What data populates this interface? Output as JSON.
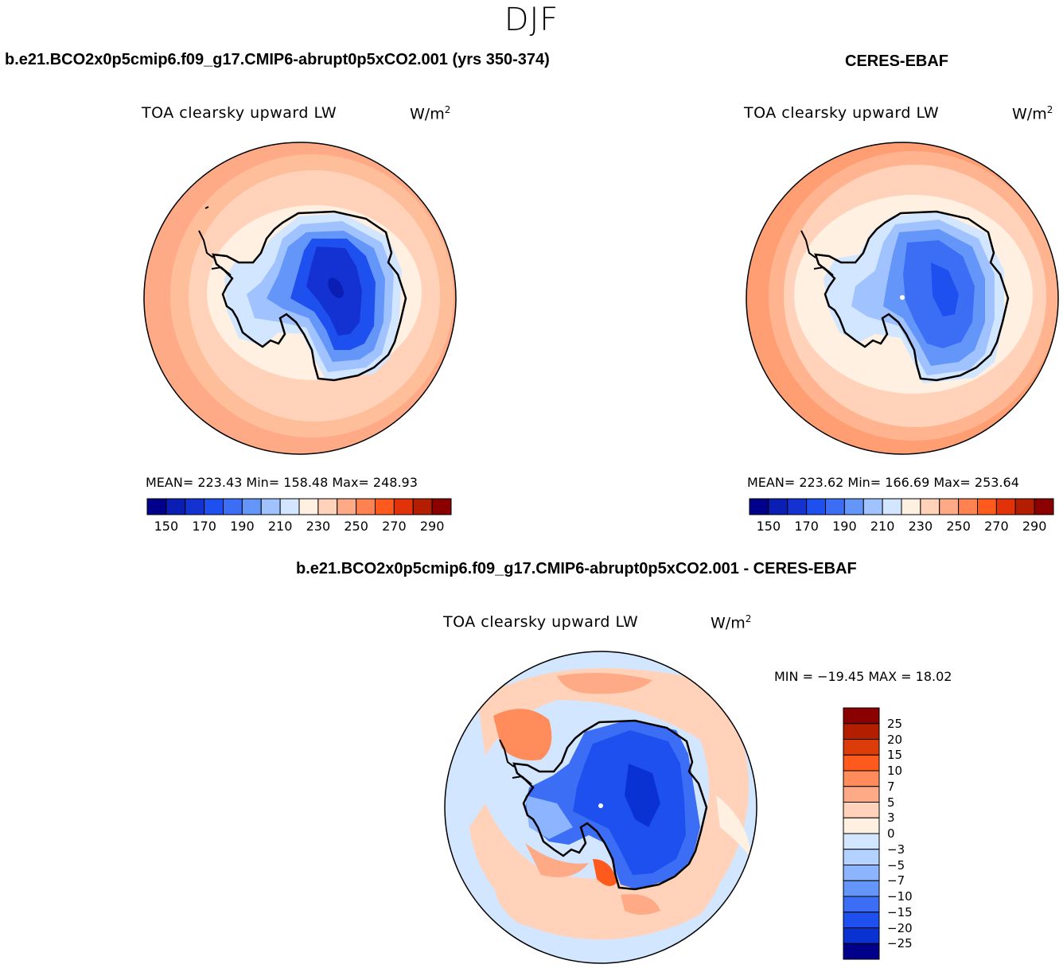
{
  "season": "DJF",
  "panels": {
    "model": {
      "title": "b.e21.BCO2x0p5cmip6.f09_g17.CMIP6-abrupt0p5xCO2.001 (yrs 350-374)",
      "variable": "TOA clearsky upward LW",
      "units": "W/m",
      "units_exp": "2",
      "stats": "MEAN= 223.43   Min= 158.48   Max= 248.93"
    },
    "obs": {
      "title": "CERES-EBAF",
      "variable": "TOA clearsky upward LW",
      "units": "W/m",
      "units_exp": "2",
      "stats": "MEAN= 223.62   Min= 166.69   Max= 253.64"
    },
    "diff": {
      "title": "b.e21.BCO2x0p5cmip6.f09_g17.CMIP6-abrupt0p5xCO2.001 - CERES-EBAF",
      "variable": "TOA clearsky upward LW",
      "units": "W/m",
      "units_exp": "2",
      "stats": "MIN = −19.45 MAX =   18.02"
    }
  },
  "colorbar_abs": {
    "colors": [
      "#00008b",
      "#0a1eb4",
      "#1432d2",
      "#1e50f0",
      "#3c6ef5",
      "#6496fa",
      "#a0c3ff",
      "#d2e6ff",
      "#fff0e1",
      "#ffd2b9",
      "#ffaa87",
      "#ff8250",
      "#ff5a1e",
      "#e1320a",
      "#b41e00",
      "#8b0000"
    ],
    "tick_labels": [
      "150",
      "170",
      "190",
      "210",
      "230",
      "250",
      "270",
      "290"
    ]
  },
  "colorbar_diff": {
    "colors": [
      "#8b0000",
      "#b41e00",
      "#dc3c0a",
      "#ff5a1e",
      "#ff8c5a",
      "#ffaa87",
      "#ffd2b9",
      "#fff0e1",
      "#d2e6ff",
      "#b4d2ff",
      "#8cb4ff",
      "#6496fa",
      "#3c6ef5",
      "#1e50f0",
      "#0a32d2",
      "#00008b"
    ],
    "tick_labels": [
      "25",
      "20",
      "15",
      "10",
      "7",
      "5",
      "3",
      "0",
      "−3",
      "−5",
      "−7",
      "−10",
      "−15",
      "−20",
      "−25"
    ]
  }
}
